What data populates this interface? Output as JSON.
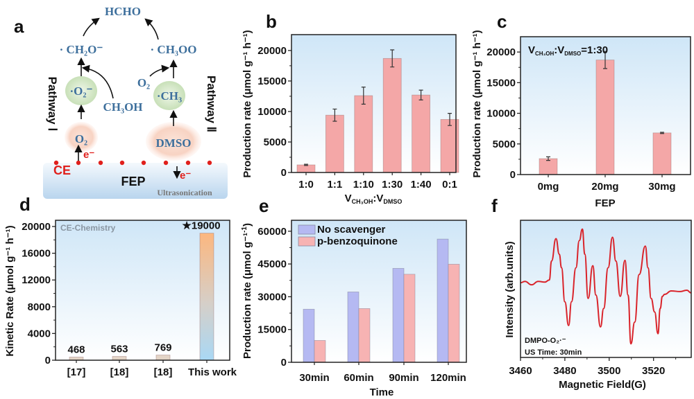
{
  "panel_labels": {
    "a": "a",
    "b": "b",
    "c": "c",
    "d": "d",
    "e": "e",
    "f": "f"
  },
  "diagram": {
    "product": "HCHO",
    "intermediate_left": "· CH₂O⁻",
    "intermediate_right": "· CH₃OO",
    "radical_left": "·O₂⁻",
    "radical_right": "·CH₃",
    "reagent_methanol": "CH₃OH",
    "reagent_o2": "O₂",
    "source_left": "O₂",
    "source_right": "DMSO",
    "electron": "e⁻",
    "electron_out": "e⁻",
    "ce_label": "CE",
    "substrate": "FEP",
    "process": "Ultrasonication",
    "pathway_left": "Pathway Ⅰ",
    "pathway_right": "Pathway Ⅱ",
    "colors": {
      "chem_text": "#3d6f9c",
      "electron": "#e0201c",
      "radical_bubble": "#d9ead0",
      "source_bubble": "#f8d7c8"
    }
  },
  "chart_data": [
    {
      "id": "b",
      "type": "bar",
      "categories": [
        "1:0",
        "1:1",
        "1:10",
        "1:30",
        "1:40",
        "0:1"
      ],
      "values": [
        1250,
        9400,
        12600,
        18700,
        12700,
        8700
      ],
      "errors": [
        100,
        1000,
        1400,
        1400,
        800,
        1000
      ],
      "ylabel": "Production rate (μmol g⁻¹ h⁻¹)",
      "xlabel": {
        "v1": "V",
        "s1": "CH₃OH",
        "sep": ":V",
        "s2": "DMSO"
      },
      "yticks": [
        0,
        5000,
        10000,
        15000,
        20000
      ],
      "ylim": [
        0,
        22600
      ],
      "bar_color": "#f4a7a7"
    },
    {
      "id": "c",
      "type": "bar",
      "categories": [
        "0mg",
        "20mg",
        "30mg"
      ],
      "values": [
        2600,
        18700,
        6800
      ],
      "errors": [
        300,
        1400,
        100
      ],
      "ylabel": "Production rate (μmol g⁻¹ h⁻¹)",
      "xlabel": "FEP",
      "annotation": {
        "v1": "V",
        "s1": "CH₃OH",
        "sep": ":V",
        "s2": "DMSO",
        "tail": "=1:30"
      },
      "yticks": [
        0,
        5000,
        10000,
        15000,
        20000
      ],
      "ylim": [
        0,
        22500
      ],
      "bar_color": "#f4a7a7"
    },
    {
      "id": "d",
      "type": "bar",
      "categories": [
        "[17]",
        "[18]",
        "[18]",
        "This work"
      ],
      "values": [
        468,
        563,
        769,
        19000
      ],
      "data_labels": [
        "468",
        "563",
        "769",
        "★19000"
      ],
      "ylabel": "Kinetic Rate (μmol g⁻¹ h⁻¹)",
      "annotation": "CE-Chemistry",
      "yticks": [
        0,
        4000,
        8000,
        12000,
        16000,
        20000
      ],
      "ylim": [
        0,
        20930
      ],
      "highlight_color": "#e0201c"
    },
    {
      "id": "e",
      "type": "bar",
      "categories": [
        "30min",
        "60min",
        "90min",
        "120min"
      ],
      "series": [
        {
          "name": "No scavenger",
          "values": [
            24300,
            32200,
            43000,
            56400
          ],
          "color": "#b5b9f2"
        },
        {
          "name": "p-benzoquinone",
          "values": [
            10000,
            24600,
            40300,
            44900
          ],
          "color": "#f7b3b3"
        }
      ],
      "ylabel": "Production rate (μmol g⁻¹",
      "ylabel_sup": "-1",
      "ylabel_end": ")",
      "xlabel": "Time",
      "yticks": [
        0,
        15000,
        30000,
        45000,
        60000
      ],
      "ylim": [
        0,
        65000
      ],
      "legend": "top-left"
    },
    {
      "id": "f",
      "type": "line",
      "x": [
        3460,
        3462,
        3465,
        3468,
        3471,
        3473,
        3474,
        3476,
        3477.5,
        3478.5,
        3480,
        3481.7,
        3483,
        3485,
        3486.5,
        3487.9,
        3489,
        3490.5,
        3492.6,
        3494,
        3496.1,
        3497.5,
        3499.5,
        3501.5,
        3503,
        3505,
        3507.1,
        3508.5,
        3509.8,
        3511.5,
        3513.5,
        3516.3,
        3517.5,
        3518.9,
        3520.5,
        3522,
        3523,
        3524,
        3525,
        3528,
        3532,
        3535,
        3537
      ],
      "y": [
        -2,
        0,
        -5,
        0,
        -1,
        2,
        30,
        63,
        40,
        20,
        -30,
        -65,
        -30,
        20,
        60,
        77,
        40,
        -25,
        23,
        -20,
        -67,
        -40,
        20,
        65,
        30,
        -22,
        31,
        -20,
        -92,
        -60,
        10,
        52,
        20,
        -25,
        -45,
        -77,
        -40,
        -22,
        -19,
        -14,
        -15,
        -13,
        -17
      ],
      "xlabel": "Magnetic Field(G)",
      "ylabel": "Intensity (arb.units)",
      "xticks": [
        3460,
        3480,
        3500,
        3520
      ],
      "xlim": [
        3460,
        3537
      ],
      "ylim": [
        -112,
        90
      ],
      "annotation_probe": "DMPO-O₂·⁻",
      "annotation_time": "US Time: 30min",
      "line_color": "#d9232a"
    }
  ]
}
